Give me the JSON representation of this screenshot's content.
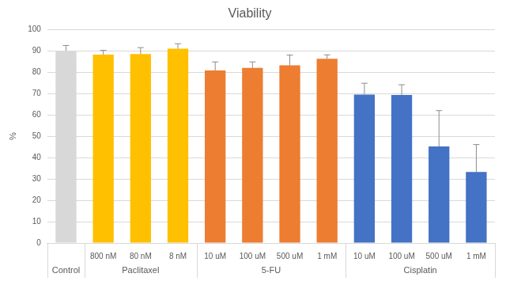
{
  "chart_data": {
    "type": "bar",
    "title": "Viability",
    "y_label": "%",
    "categories": [
      null,
      "800 nM",
      "80 nM",
      "8 nM",
      "10 uM",
      "100 uM",
      "500 uM",
      "1 mM",
      "10 uM",
      "100 uM",
      "500 uM",
      "1 mM"
    ],
    "groups": [
      {
        "label": "Control",
        "count": 1
      },
      {
        "label": "Paclitaxel",
        "count": 3
      },
      {
        "label": "5-FU",
        "count": 4
      },
      {
        "label": "Cisplatin",
        "count": 4
      }
    ],
    "values": [
      90,
      88.2,
      88.5,
      91,
      80.8,
      82,
      83.2,
      86.3,
      69.5,
      69.3,
      45.2,
      33.3
    ],
    "errors": [
      2.5,
      2,
      3,
      2.3,
      4,
      2.8,
      4.8,
      1.8,
      5.3,
      4.8,
      16.8,
      12.8
    ],
    "colors": [
      "#d8d8d8",
      "#ffc000",
      "#ffc000",
      "#ffc000",
      "#ed7d31",
      "#ed7d31",
      "#ed7d31",
      "#ed7d31",
      "#4472c4",
      "#4472c4",
      "#4472c4",
      "#4472c4"
    ],
    "ylim": [
      0,
      100
    ],
    "yticks": [
      0,
      10,
      20,
      30,
      40,
      50,
      60,
      70,
      80,
      90,
      100
    ],
    "grid": true
  }
}
